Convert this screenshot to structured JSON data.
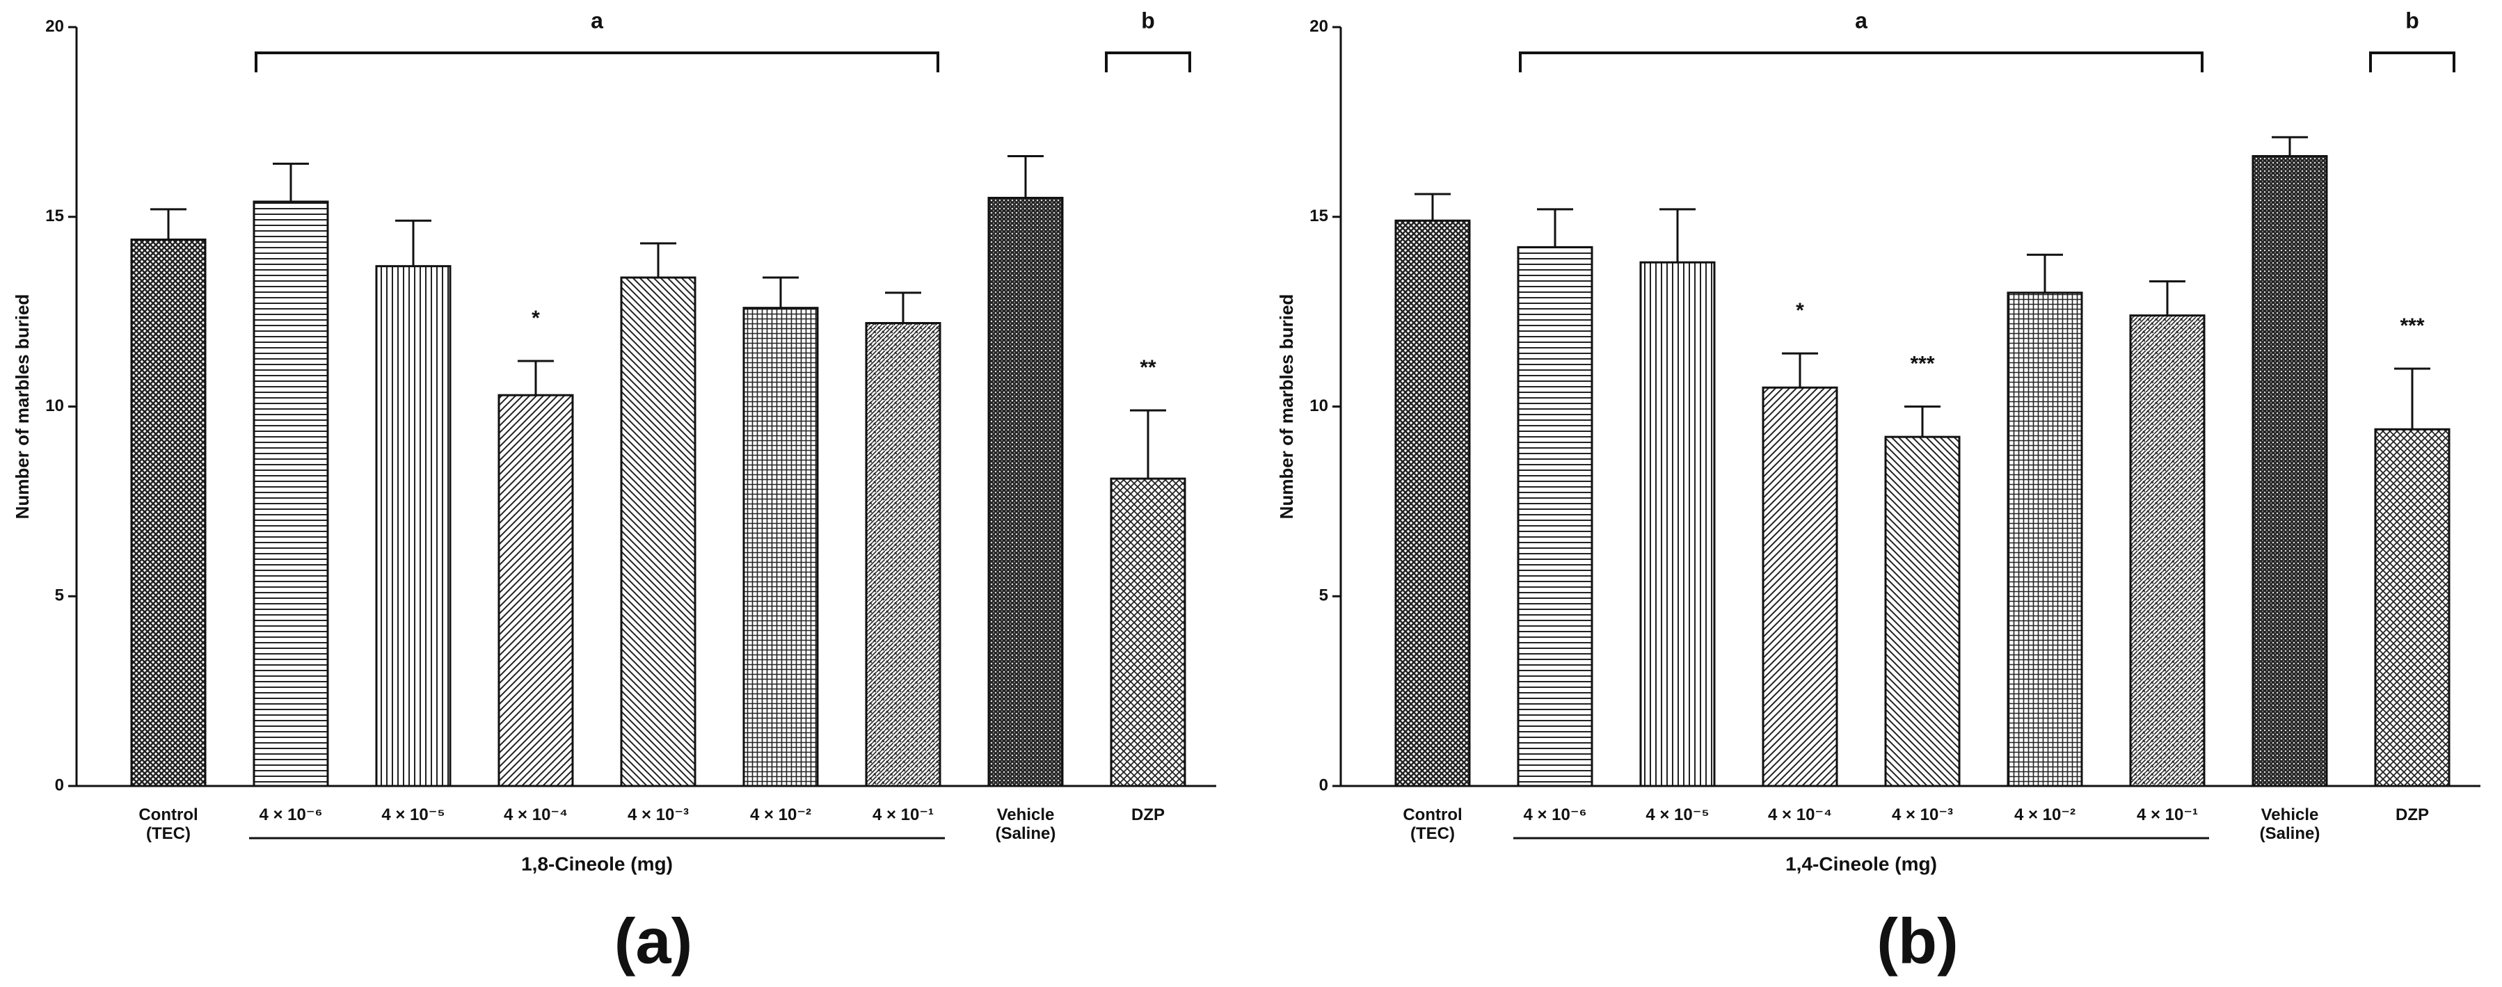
{
  "chart_data": [
    {
      "type": "bar",
      "panel": "(a)",
      "y_label": "Number of marbles buried",
      "categories": [
        "Control (TEC)",
        "4 × 10⁻⁶",
        "4 × 10⁻⁵",
        "4 × 10⁻⁴",
        "4 × 10⁻³",
        "4 × 10⁻²",
        "4 × 10⁻¹",
        "Vehicle (Saline)",
        "DZP"
      ],
      "values": [
        14.4,
        15.4,
        13.7,
        10.3,
        13.4,
        12.6,
        12.2,
        15.5,
        8.1
      ],
      "errors": [
        0.8,
        1.0,
        1.2,
        0.9,
        0.9,
        0.8,
        0.8,
        1.1,
        1.8
      ],
      "significance": [
        null,
        null,
        null,
        "*",
        null,
        null,
        null,
        null,
        "**"
      ],
      "group_label": "1,8-Cineole (mg)",
      "bracket_labels": [
        "a",
        "b"
      ],
      "ylim": [
        0,
        20
      ],
      "yticks": [
        0,
        5,
        10,
        15,
        20
      ]
    },
    {
      "type": "bar",
      "panel": "(b)",
      "y_label": "Number of marbles buried",
      "categories": [
        "Control (TEC)",
        "4 × 10⁻⁶",
        "4 × 10⁻⁵",
        "4 × 10⁻⁴",
        "4 × 10⁻³",
        "4 × 10⁻²",
        "4 × 10⁻¹",
        "Vehicle (Saline)",
        "DZP"
      ],
      "values": [
        14.9,
        14.2,
        13.8,
        10.5,
        9.2,
        13.0,
        12.4,
        16.6,
        9.4
      ],
      "errors": [
        0.7,
        1.0,
        1.4,
        0.9,
        0.8,
        1.0,
        0.9,
        0.5,
        1.6
      ],
      "significance": [
        null,
        null,
        null,
        "*",
        "***",
        null,
        null,
        null,
        "***"
      ],
      "group_label": "1,4-Cineole (mg)",
      "bracket_labels": [
        "a",
        "b"
      ],
      "ylim": [
        0,
        20
      ],
      "yticks": [
        0,
        5,
        10,
        15,
        20
      ]
    }
  ]
}
